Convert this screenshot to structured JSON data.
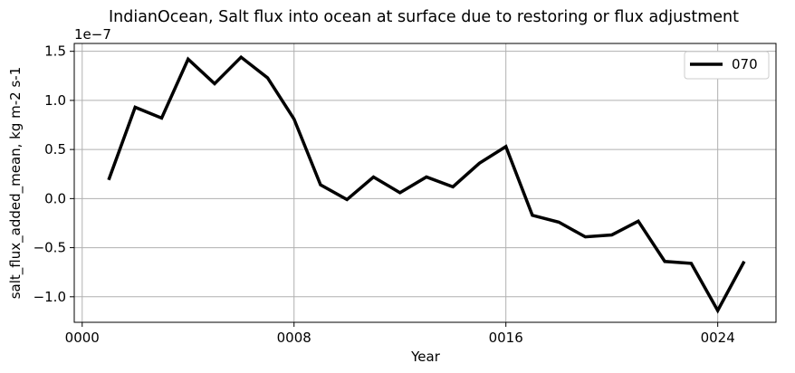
{
  "chart_data": {
    "type": "line",
    "title": "IndianOcean, Salt flux into ocean at surface due to restoring or flux adjustment",
    "xlabel": "Year",
    "ylabel": "salt_flux_added_mean, kg m-2 s-1",
    "y_offset_label": "1e−7",
    "y_scale": 1e-07,
    "xlim": [
      -0.3,
      26.2
    ],
    "ylim": [
      -1.26,
      1.58
    ],
    "xticks": [
      0,
      8,
      16,
      24
    ],
    "xtick_labels": [
      "0000",
      "0008",
      "0016",
      "0024"
    ],
    "yticks": [
      -1.0,
      -0.5,
      0.0,
      0.5,
      1.0,
      1.5
    ],
    "ytick_labels": [
      "−1.0",
      "−0.5",
      "0.0",
      "0.5",
      "1.0",
      "1.5"
    ],
    "grid": true,
    "legend_position": "top-right",
    "series": [
      {
        "name": "070",
        "color": "#000000",
        "x": [
          1,
          2,
          3,
          4,
          5,
          6,
          7,
          8,
          9,
          10,
          11,
          12,
          13,
          14,
          15,
          16,
          17,
          18,
          19,
          20,
          21,
          22,
          23,
          24,
          25
        ],
        "values": [
          0.19,
          0.93,
          0.82,
          1.42,
          1.17,
          1.44,
          1.23,
          0.81,
          0.14,
          -0.01,
          0.22,
          0.06,
          0.22,
          0.12,
          0.36,
          0.53,
          -0.17,
          -0.24,
          -0.39,
          -0.37,
          -0.23,
          -0.64,
          -0.66,
          -1.14,
          -0.64
        ]
      }
    ]
  }
}
